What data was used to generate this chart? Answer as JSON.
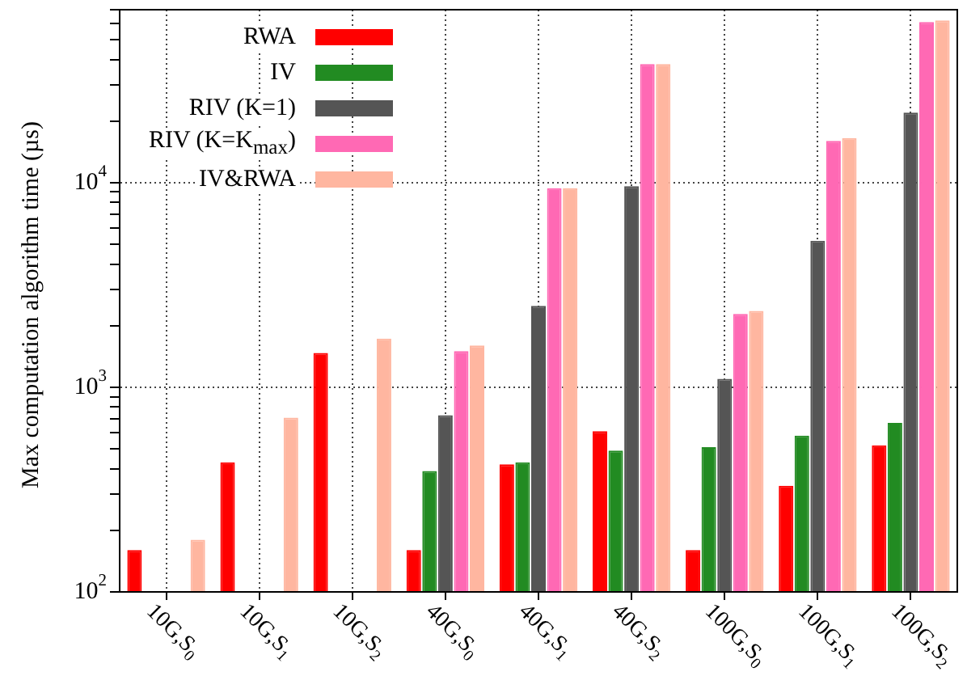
{
  "chart_data": {
    "type": "bar",
    "ylabel": "Max computation algorithm time  (µs)",
    "categories": [
      "10G,S$_{0}$",
      "10G,S$_{1}$",
      "10G,S$_{2}$",
      "40G,S$_{0}$",
      "40G,S$_{1}$",
      "40G,S$_{2}$",
      "100G,S$_{0}$",
      "100G,S$_{1}$",
      "100G,S$_{2}$"
    ],
    "series": [
      {
        "name": "RWA",
        "color": "#ff0000",
        "values": [
          160,
          430,
          1470,
          160,
          420,
          610,
          160,
          330,
          520
        ]
      },
      {
        "name": "IV",
        "color": "#228b22",
        "values": [
          null,
          null,
          null,
          390,
          430,
          490,
          510,
          580,
          670
        ]
      },
      {
        "name": "RIV (K=1)",
        "color": "#555555",
        "values": [
          null,
          null,
          null,
          730,
          2500,
          9600,
          1100,
          5200,
          22000
        ]
      },
      {
        "name": "RIV (K=K$_{max}$)",
        "color": "#ff69b4",
        "values": [
          null,
          null,
          null,
          1500,
          9400,
          38000,
          2280,
          16000,
          61000
        ]
      },
      {
        "name": "IV&RWA",
        "color": "#ffb6a0",
        "values": [
          180,
          710,
          1730,
          1600,
          9400,
          38000,
          2360,
          16500,
          62000
        ]
      }
    ],
    "log": "y",
    "ylim": [
      100,
      70000
    ],
    "yticks": [
      {
        "value": 100,
        "label": "10$^{2}$"
      },
      {
        "value": 200,
        "label": null
      },
      {
        "value": 300,
        "label": null
      },
      {
        "value": 400,
        "label": null
      },
      {
        "value": 500,
        "label": null
      },
      {
        "value": 600,
        "label": null
      },
      {
        "value": 700,
        "label": null
      },
      {
        "value": 800,
        "label": null
      },
      {
        "value": 900,
        "label": null
      },
      {
        "value": 1000,
        "label": "10$^{3}$"
      },
      {
        "value": 2000,
        "label": null
      },
      {
        "value": 3000,
        "label": null
      },
      {
        "value": 4000,
        "label": null
      },
      {
        "value": 5000,
        "label": null
      },
      {
        "value": 6000,
        "label": null
      },
      {
        "value": 7000,
        "label": null
      },
      {
        "value": 8000,
        "label": null
      },
      {
        "value": 9000,
        "label": null
      },
      {
        "value": 10000,
        "label": "10$^{4}$"
      },
      {
        "value": 20000,
        "label": null
      },
      {
        "value": 30000,
        "label": null
      },
      {
        "value": 40000,
        "label": null
      },
      {
        "value": 50000,
        "label": null
      },
      {
        "value": 60000,
        "label": null
      },
      {
        "value": 70000,
        "label": null
      }
    ],
    "grid": true,
    "legend": "top left"
  }
}
